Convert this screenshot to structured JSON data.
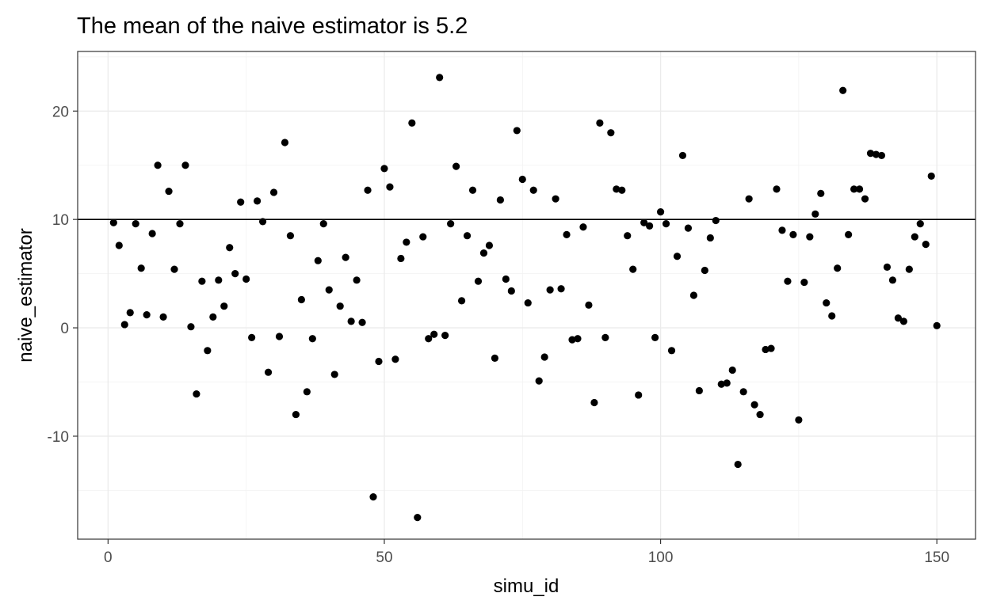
{
  "chart_data": {
    "type": "scatter",
    "title": "The mean of the naive estimator is  5.2",
    "xlabel": "simu_id",
    "ylabel": "naive_estimator",
    "xlim": [
      -5.5,
      157
    ],
    "ylim": [
      -19.5,
      25.5
    ],
    "xticks": [
      0,
      50,
      100,
      150
    ],
    "xtick_labels": [
      "0",
      "50",
      "100",
      "150"
    ],
    "yticks": [
      -10,
      0,
      10,
      20
    ],
    "ytick_labels": [
      "-10",
      "0",
      "10",
      "20"
    ],
    "grid": true,
    "hline": 10,
    "colors": {
      "point": "#000000",
      "hline": "#000000",
      "grid": "#ebebeb",
      "border": "#333333"
    },
    "series": [
      {
        "x": [
          1,
          2,
          3,
          4,
          5,
          6,
          7,
          8,
          9,
          10,
          11,
          12,
          13,
          14,
          15,
          16,
          17,
          18,
          19,
          20,
          21,
          22,
          23,
          24,
          25,
          26,
          27,
          28,
          29,
          30,
          31,
          32,
          33,
          34,
          35,
          36,
          37,
          38,
          39,
          40,
          41,
          42,
          43,
          44,
          45,
          46,
          47,
          48,
          49,
          50,
          51,
          52,
          53,
          54,
          55,
          56,
          57,
          58,
          59,
          60,
          61,
          62,
          63,
          64,
          65,
          66,
          67,
          68,
          69,
          70,
          71,
          72,
          73,
          74,
          75,
          76,
          77,
          78,
          79,
          80,
          81,
          82,
          83,
          84,
          85,
          86,
          87,
          88,
          89,
          90,
          91,
          92,
          93,
          94,
          95,
          96,
          97,
          98,
          99,
          100,
          101,
          102,
          103,
          104,
          105,
          106,
          107,
          108,
          109,
          110,
          111,
          112,
          113,
          114,
          115,
          116,
          117,
          118,
          119,
          120,
          121,
          122,
          123,
          124,
          125,
          126,
          127,
          128,
          129,
          130,
          131,
          132,
          133,
          134,
          135,
          136,
          137,
          138,
          139,
          140,
          141,
          142,
          143,
          144,
          145,
          146,
          147,
          148,
          149,
          150
        ],
        "y": [
          9.7,
          7.6,
          0.3,
          1.4,
          9.6,
          5.5,
          1.2,
          8.7,
          15.0,
          1.0,
          12.6,
          5.4,
          9.6,
          15.0,
          0.1,
          -6.1,
          4.3,
          -2.1,
          1.0,
          4.4,
          2.0,
          7.4,
          5.0,
          11.6,
          4.5,
          -0.9,
          11.7,
          9.8,
          -4.1,
          12.5,
          -0.8,
          17.1,
          8.5,
          -8.0,
          2.6,
          -5.9,
          -1.0,
          6.2,
          9.6,
          3.5,
          -4.3,
          2.0,
          6.5,
          0.6,
          4.4,
          0.5,
          12.7,
          -15.6,
          -3.1,
          14.7,
          13.0,
          -2.9,
          6.4,
          7.9,
          18.9,
          -17.5,
          8.4,
          -1.0,
          -0.6,
          23.1,
          -0.7,
          9.6,
          14.9,
          2.5,
          8.5,
          12.7,
          4.3,
          6.9,
          7.6,
          -2.8,
          11.8,
          4.5,
          3.4,
          18.2,
          13.7,
          2.3,
          12.7,
          -4.9,
          -2.7,
          3.5,
          11.9,
          3.6,
          8.6,
          -1.1,
          -1.0,
          9.3,
          2.1,
          -6.9,
          18.9,
          -0.9,
          18.0,
          12.8,
          12.7,
          8.5,
          5.4,
          -6.2,
          9.7,
          9.4,
          -0.9,
          10.7,
          9.6,
          -2.1,
          6.6,
          15.9,
          9.2,
          3.0,
          -5.8,
          5.3,
          8.3,
          9.9,
          -5.2,
          -5.1,
          -3.9,
          -12.6,
          -5.9,
          11.9,
          -7.1,
          -8.0,
          -2.0,
          -1.9,
          12.8,
          9.0,
          4.3,
          8.6,
          -8.5,
          4.2,
          8.4,
          10.5,
          12.4,
          2.3,
          1.1,
          5.5,
          21.9,
          8.6,
          12.8,
          12.8,
          11.9,
          16.1,
          16.0,
          15.9,
          5.6,
          4.4,
          0.9,
          0.6,
          5.4,
          8.4,
          9.6,
          7.7,
          14.0,
          0.2
        ]
      }
    ]
  }
}
